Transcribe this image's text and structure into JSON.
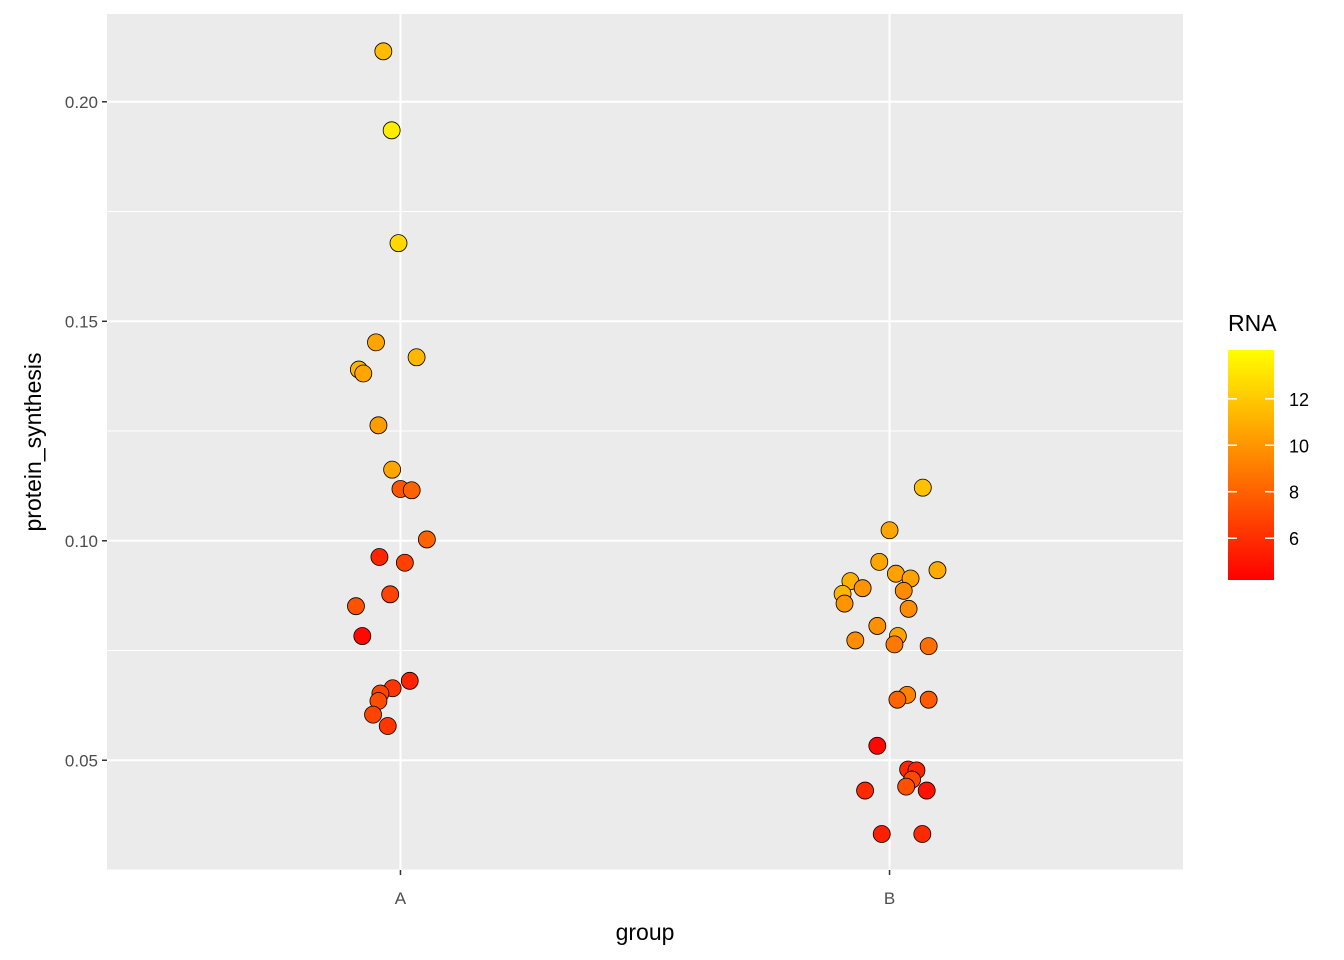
{
  "chart_data": {
    "type": "scatter",
    "title": "",
    "xlabel": "group",
    "ylabel": "protein_synthesis",
    "categories": [
      "A",
      "B"
    ],
    "ylim": [
      0.025,
      0.22
    ],
    "yticks": [
      0.05,
      0.1,
      0.15,
      0.2
    ],
    "ytick_labels": [
      "0.05",
      "0.10",
      "0.15",
      "0.20"
    ],
    "color": {
      "legend_title": "RNA",
      "range": [
        4.2,
        14.1
      ],
      "low_color": "#ff0000",
      "high_color": "#ffff00",
      "ticks": [
        6,
        8,
        10,
        12
      ],
      "tick_labels": [
        "6",
        "8",
        "10",
        "12"
      ]
    },
    "point_style": {
      "stroke": "#000000"
    },
    "points": [
      {
        "group": "A",
        "jitter": -0.035,
        "y": 0.2115,
        "rna": 11.5
      },
      {
        "group": "A",
        "jitter": -0.018,
        "y": 0.1935,
        "rna": 13.4
      },
      {
        "group": "A",
        "jitter": -0.004,
        "y": 0.1678,
        "rna": 12.6
      },
      {
        "group": "A",
        "jitter": -0.05,
        "y": 0.1452,
        "rna": 10.6
      },
      {
        "group": "A",
        "jitter": 0.033,
        "y": 0.1418,
        "rna": 11.3
      },
      {
        "group": "A",
        "jitter": -0.085,
        "y": 0.139,
        "rna": 11.2
      },
      {
        "group": "A",
        "jitter": -0.076,
        "y": 0.1381,
        "rna": 10.6
      },
      {
        "group": "A",
        "jitter": -0.045,
        "y": 0.1263,
        "rna": 10.3
      },
      {
        "group": "A",
        "jitter": -0.017,
        "y": 0.1162,
        "rna": 10.6
      },
      {
        "group": "A",
        "jitter": 0.0,
        "y": 0.1118,
        "rna": 7.5
      },
      {
        "group": "A",
        "jitter": 0.023,
        "y": 0.1115,
        "rna": 8.0
      },
      {
        "group": "A",
        "jitter": 0.054,
        "y": 0.1003,
        "rna": 8.0
      },
      {
        "group": "A",
        "jitter": -0.043,
        "y": 0.0963,
        "rna": 5.6
      },
      {
        "group": "A",
        "jitter": 0.009,
        "y": 0.095,
        "rna": 6.7
      },
      {
        "group": "A",
        "jitter": -0.021,
        "y": 0.0878,
        "rna": 6.8
      },
      {
        "group": "A",
        "jitter": -0.091,
        "y": 0.0851,
        "rna": 7.4
      },
      {
        "group": "A",
        "jitter": -0.078,
        "y": 0.0783,
        "rna": 4.5
      },
      {
        "group": "A",
        "jitter": 0.019,
        "y": 0.0681,
        "rna": 5.6
      },
      {
        "group": "A",
        "jitter": -0.016,
        "y": 0.0664,
        "rna": 6.3
      },
      {
        "group": "A",
        "jitter": -0.041,
        "y": 0.0652,
        "rna": 6.8
      },
      {
        "group": "A",
        "jitter": -0.045,
        "y": 0.0635,
        "rna": 7.2
      },
      {
        "group": "A",
        "jitter": -0.056,
        "y": 0.0604,
        "rna": 6.8
      },
      {
        "group": "A",
        "jitter": -0.026,
        "y": 0.0578,
        "rna": 6.3
      },
      {
        "group": "B",
        "jitter": 0.068,
        "y": 0.1121,
        "rna": 11.7
      },
      {
        "group": "B",
        "jitter": 0.0,
        "y": 0.1024,
        "rna": 10.6
      },
      {
        "group": "B",
        "jitter": -0.021,
        "y": 0.0952,
        "rna": 10.6
      },
      {
        "group": "B",
        "jitter": 0.098,
        "y": 0.0933,
        "rna": 10.8
      },
      {
        "group": "B",
        "jitter": 0.013,
        "y": 0.0925,
        "rna": 10.5
      },
      {
        "group": "B",
        "jitter": 0.043,
        "y": 0.0914,
        "rna": 10.5
      },
      {
        "group": "B",
        "jitter": -0.08,
        "y": 0.0908,
        "rna": 11.0
      },
      {
        "group": "B",
        "jitter": -0.055,
        "y": 0.0892,
        "rna": 9.9
      },
      {
        "group": "B",
        "jitter": 0.029,
        "y": 0.0886,
        "rna": 9.6
      },
      {
        "group": "B",
        "jitter": -0.096,
        "y": 0.0879,
        "rna": 11.2
      },
      {
        "group": "B",
        "jitter": -0.092,
        "y": 0.0857,
        "rna": 9.9
      },
      {
        "group": "B",
        "jitter": 0.039,
        "y": 0.0845,
        "rna": 9.6
      },
      {
        "group": "B",
        "jitter": -0.025,
        "y": 0.0806,
        "rna": 9.8
      },
      {
        "group": "B",
        "jitter": 0.017,
        "y": 0.0783,
        "rna": 10.5
      },
      {
        "group": "B",
        "jitter": -0.07,
        "y": 0.0773,
        "rna": 9.7
      },
      {
        "group": "B",
        "jitter": 0.01,
        "y": 0.0764,
        "rna": 8.9
      },
      {
        "group": "B",
        "jitter": 0.08,
        "y": 0.076,
        "rna": 8.5
      },
      {
        "group": "B",
        "jitter": 0.036,
        "y": 0.0649,
        "rna": 9.3
      },
      {
        "group": "B",
        "jitter": 0.016,
        "y": 0.0638,
        "rna": 8.1
      },
      {
        "group": "B",
        "jitter": 0.08,
        "y": 0.0638,
        "rna": 7.7
      },
      {
        "group": "B",
        "jitter": -0.025,
        "y": 0.0533,
        "rna": 4.5
      },
      {
        "group": "B",
        "jitter": 0.038,
        "y": 0.0479,
        "rna": 5.7
      },
      {
        "group": "B",
        "jitter": 0.055,
        "y": 0.0477,
        "rna": 5.6
      },
      {
        "group": "B",
        "jitter": 0.046,
        "y": 0.0456,
        "rna": 7.0
      },
      {
        "group": "B",
        "jitter": 0.034,
        "y": 0.044,
        "rna": 7.3
      },
      {
        "group": "B",
        "jitter": -0.05,
        "y": 0.0431,
        "rna": 5.8
      },
      {
        "group": "B",
        "jitter": 0.076,
        "y": 0.0431,
        "rna": 4.9
      },
      {
        "group": "B",
        "jitter": -0.016,
        "y": 0.0332,
        "rna": 5.4
      },
      {
        "group": "B",
        "jitter": 0.067,
        "y": 0.0332,
        "rna": 5.8
      }
    ]
  }
}
